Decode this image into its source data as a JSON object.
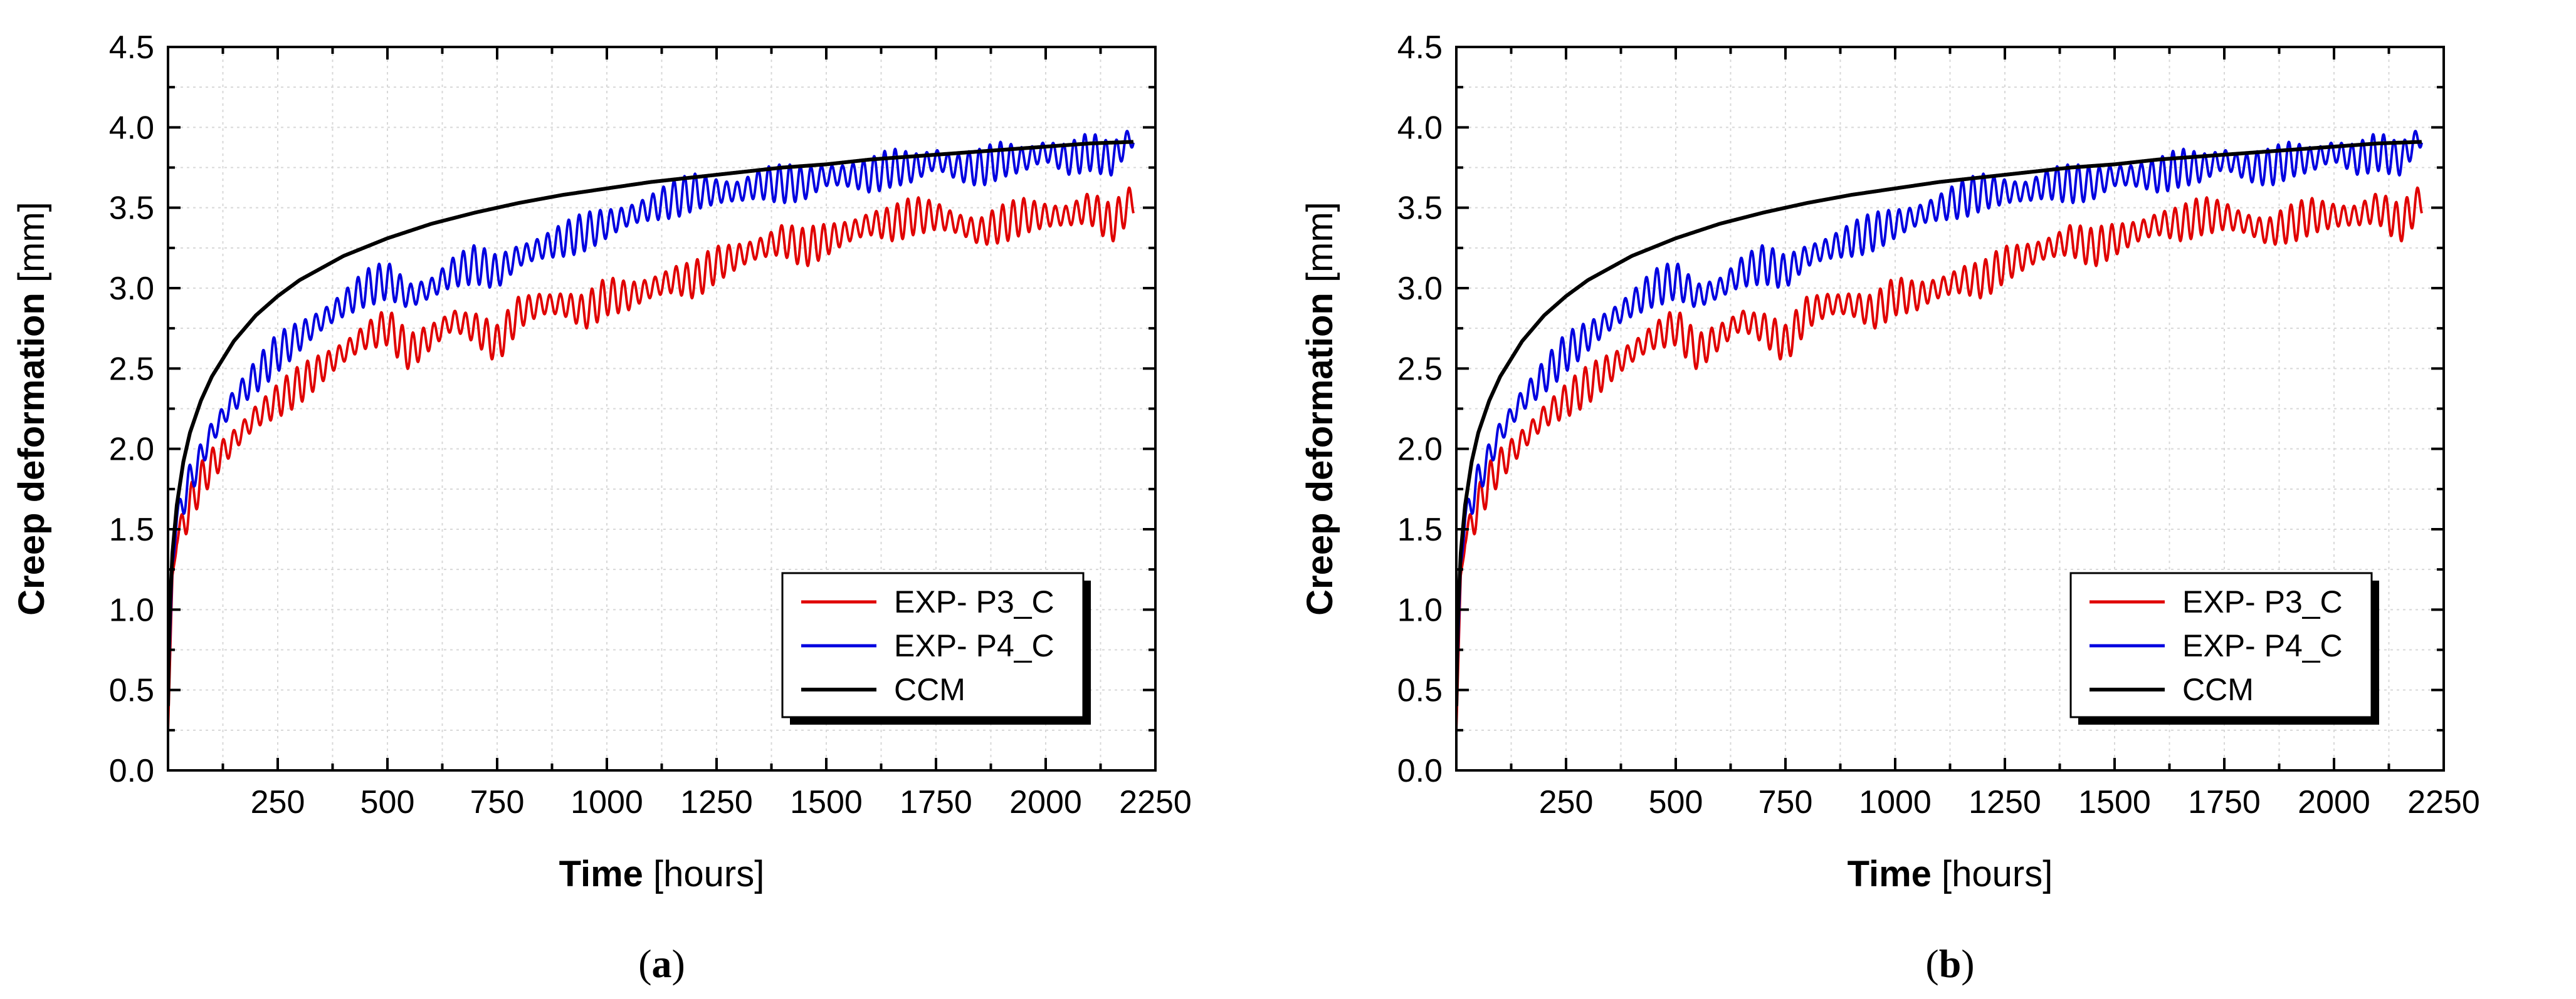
{
  "chart_data": [
    {
      "type": "line",
      "panel_label": "a",
      "xlabel_bold": "Time",
      "xlabel_unit": "[hours]",
      "ylabel_bold": "Creep deformation",
      "ylabel_unit": "[mm]",
      "xlim": [
        0,
        2250
      ],
      "ylim": [
        0.0,
        4.5
      ],
      "xticks": [
        250,
        500,
        750,
        1000,
        1250,
        1500,
        1750,
        2000,
        2250
      ],
      "yticks": [
        0.0,
        0.5,
        1.0,
        1.5,
        2.0,
        2.5,
        3.0,
        3.5,
        4.0,
        4.5
      ],
      "xtick_labels": [
        "250",
        "500",
        "750",
        "1000",
        "1250",
        "1500",
        "1750",
        "2000",
        "2250"
      ],
      "ytick_labels": [
        "0.0",
        "0.5",
        "1.0",
        "1.5",
        "2.0",
        "2.5",
        "3.0",
        "3.5",
        "4.0",
        "4.5"
      ],
      "grid": true,
      "legend_position": "bottom-right",
      "series": [
        {
          "name": "EXP- P3_C",
          "color": "#e00000",
          "x": [
            0,
            10,
            20,
            30,
            50,
            75,
            100,
            150,
            200,
            250,
            300,
            350,
            400,
            450,
            500,
            550,
            600,
            650,
            700,
            750,
            800,
            850,
            900,
            950,
            1000,
            1050,
            1100,
            1150,
            1200,
            1250,
            1300,
            1350,
            1400,
            1450,
            1500,
            1550,
            1600,
            1650,
            1700,
            1750,
            1800,
            1850,
            1900,
            1950,
            2000,
            2050,
            2100,
            2150,
            2200
          ],
          "y": [
            0.25,
            1.2,
            1.45,
            1.5,
            1.65,
            1.8,
            1.9,
            2.05,
            2.2,
            2.3,
            2.4,
            2.5,
            2.6,
            2.7,
            2.76,
            2.6,
            2.7,
            2.8,
            2.75,
            2.65,
            2.85,
            2.9,
            2.9,
            2.85,
            2.95,
            2.95,
            3.0,
            3.05,
            3.05,
            3.15,
            3.2,
            3.25,
            3.3,
            3.25,
            3.3,
            3.35,
            3.4,
            3.4,
            3.45,
            3.45,
            3.4,
            3.35,
            3.4,
            3.45,
            3.45,
            3.45,
            3.5,
            3.4,
            3.55
          ],
          "oscillation_amplitude": 0.12,
          "oscillation_period_hours": 24
        },
        {
          "name": "EXP- P4_C",
          "color": "#0000e0",
          "x": [
            0,
            10,
            20,
            30,
            50,
            75,
            100,
            150,
            200,
            250,
            300,
            350,
            400,
            450,
            500,
            550,
            600,
            650,
            700,
            750,
            800,
            850,
            900,
            950,
            1000,
            1050,
            1100,
            1150,
            1200,
            1250,
            1300,
            1350,
            1400,
            1450,
            1500,
            1550,
            1600,
            1650,
            1700,
            1750,
            1800,
            1850,
            1900,
            1950,
            2000,
            2050,
            2100,
            2150,
            2200
          ],
          "y": [
            0.4,
            1.3,
            1.55,
            1.65,
            1.8,
            1.95,
            2.1,
            2.3,
            2.45,
            2.6,
            2.7,
            2.8,
            2.9,
            3.0,
            3.05,
            2.95,
            3.0,
            3.1,
            3.15,
            3.1,
            3.2,
            3.25,
            3.3,
            3.35,
            3.4,
            3.45,
            3.5,
            3.55,
            3.6,
            3.6,
            3.6,
            3.65,
            3.65,
            3.65,
            3.7,
            3.7,
            3.7,
            3.75,
            3.75,
            3.8,
            3.75,
            3.75,
            3.8,
            3.8,
            3.85,
            3.8,
            3.85,
            3.8,
            3.95
          ],
          "oscillation_amplitude": 0.12,
          "oscillation_period_hours": 24
        },
        {
          "name": "CCM",
          "color": "#000000",
          "x": [
            0,
            2,
            5,
            10,
            20,
            35,
            50,
            75,
            100,
            150,
            200,
            250,
            300,
            400,
            500,
            600,
            700,
            800,
            900,
            1000,
            1100,
            1200,
            1300,
            1400,
            1500,
            1600,
            1700,
            1800,
            1900,
            2000,
            2100,
            2200
          ],
          "y": [
            0.4,
            0.75,
            1.05,
            1.35,
            1.65,
            1.92,
            2.1,
            2.3,
            2.45,
            2.67,
            2.83,
            2.95,
            3.05,
            3.2,
            3.31,
            3.4,
            3.47,
            3.53,
            3.58,
            3.62,
            3.66,
            3.69,
            3.72,
            3.75,
            3.77,
            3.8,
            3.82,
            3.84,
            3.86,
            3.88,
            3.9,
            3.91
          ]
        }
      ]
    },
    {
      "type": "line",
      "panel_label": "b",
      "xlabel_bold": "Time",
      "xlabel_unit": "[hours]",
      "ylabel_bold": "Creep deformation",
      "ylabel_unit": "[mm]",
      "xlim": [
        0,
        2250
      ],
      "ylim": [
        0.0,
        4.5
      ],
      "xticks": [
        250,
        500,
        750,
        1000,
        1250,
        1500,
        1750,
        2000,
        2250
      ],
      "yticks": [
        0.0,
        0.5,
        1.0,
        1.5,
        2.0,
        2.5,
        3.0,
        3.5,
        4.0,
        4.5
      ],
      "xtick_labels": [
        "250",
        "500",
        "750",
        "1000",
        "1250",
        "1500",
        "1750",
        "2000",
        "2250"
      ],
      "ytick_labels": [
        "0.0",
        "0.5",
        "1.0",
        "1.5",
        "2.0",
        "2.5",
        "3.0",
        "3.5",
        "4.0",
        "4.5"
      ],
      "grid": true,
      "legend_position": "bottom-right",
      "series": [
        {
          "name": "EXP- P3_C",
          "color": "#e00000",
          "x": [
            0,
            10,
            20,
            30,
            50,
            75,
            100,
            150,
            200,
            250,
            300,
            350,
            400,
            450,
            500,
            550,
            600,
            650,
            700,
            750,
            800,
            850,
            900,
            950,
            1000,
            1050,
            1100,
            1150,
            1200,
            1250,
            1300,
            1350,
            1400,
            1450,
            1500,
            1550,
            1600,
            1650,
            1700,
            1750,
            1800,
            1850,
            1900,
            1950,
            2000,
            2050,
            2100,
            2150,
            2200
          ],
          "y": [
            0.25,
            1.2,
            1.45,
            1.5,
            1.65,
            1.8,
            1.9,
            2.05,
            2.2,
            2.3,
            2.4,
            2.5,
            2.6,
            2.7,
            2.76,
            2.6,
            2.7,
            2.8,
            2.75,
            2.65,
            2.85,
            2.9,
            2.9,
            2.85,
            2.95,
            2.95,
            3.0,
            3.05,
            3.05,
            3.15,
            3.2,
            3.25,
            3.3,
            3.25,
            3.3,
            3.35,
            3.4,
            3.4,
            3.45,
            3.45,
            3.4,
            3.35,
            3.4,
            3.45,
            3.45,
            3.45,
            3.5,
            3.4,
            3.55
          ],
          "oscillation_amplitude": 0.12,
          "oscillation_period_hours": 24
        },
        {
          "name": "EXP- P4_C",
          "color": "#0000e0",
          "x": [
            0,
            10,
            20,
            30,
            50,
            75,
            100,
            150,
            200,
            250,
            300,
            350,
            400,
            450,
            500,
            550,
            600,
            650,
            700,
            750,
            800,
            850,
            900,
            950,
            1000,
            1050,
            1100,
            1150,
            1200,
            1250,
            1300,
            1350,
            1400,
            1450,
            1500,
            1550,
            1600,
            1650,
            1700,
            1750,
            1800,
            1850,
            1900,
            1950,
            2000,
            2050,
            2100,
            2150,
            2200
          ],
          "y": [
            0.4,
            1.3,
            1.55,
            1.65,
            1.8,
            1.95,
            2.1,
            2.3,
            2.45,
            2.6,
            2.7,
            2.8,
            2.9,
            3.0,
            3.05,
            2.95,
            3.0,
            3.1,
            3.15,
            3.1,
            3.2,
            3.25,
            3.3,
            3.35,
            3.4,
            3.45,
            3.5,
            3.55,
            3.6,
            3.6,
            3.6,
            3.65,
            3.65,
            3.65,
            3.7,
            3.7,
            3.7,
            3.75,
            3.75,
            3.8,
            3.75,
            3.75,
            3.8,
            3.8,
            3.85,
            3.8,
            3.85,
            3.8,
            3.95
          ],
          "oscillation_amplitude": 0.12,
          "oscillation_period_hours": 24
        },
        {
          "name": "CCM",
          "color": "#000000",
          "x": [
            0,
            2,
            5,
            10,
            20,
            35,
            50,
            75,
            100,
            150,
            200,
            250,
            300,
            400,
            500,
            600,
            700,
            800,
            900,
            1000,
            1100,
            1200,
            1300,
            1400,
            1500,
            1600,
            1700,
            1800,
            1900,
            2000,
            2100,
            2200
          ],
          "y": [
            0.4,
            0.75,
            1.05,
            1.35,
            1.65,
            1.92,
            2.1,
            2.3,
            2.45,
            2.67,
            2.83,
            2.95,
            3.05,
            3.2,
            3.31,
            3.4,
            3.47,
            3.53,
            3.58,
            3.62,
            3.66,
            3.69,
            3.72,
            3.75,
            3.77,
            3.8,
            3.82,
            3.84,
            3.86,
            3.88,
            3.9,
            3.91
          ]
        }
      ]
    }
  ]
}
